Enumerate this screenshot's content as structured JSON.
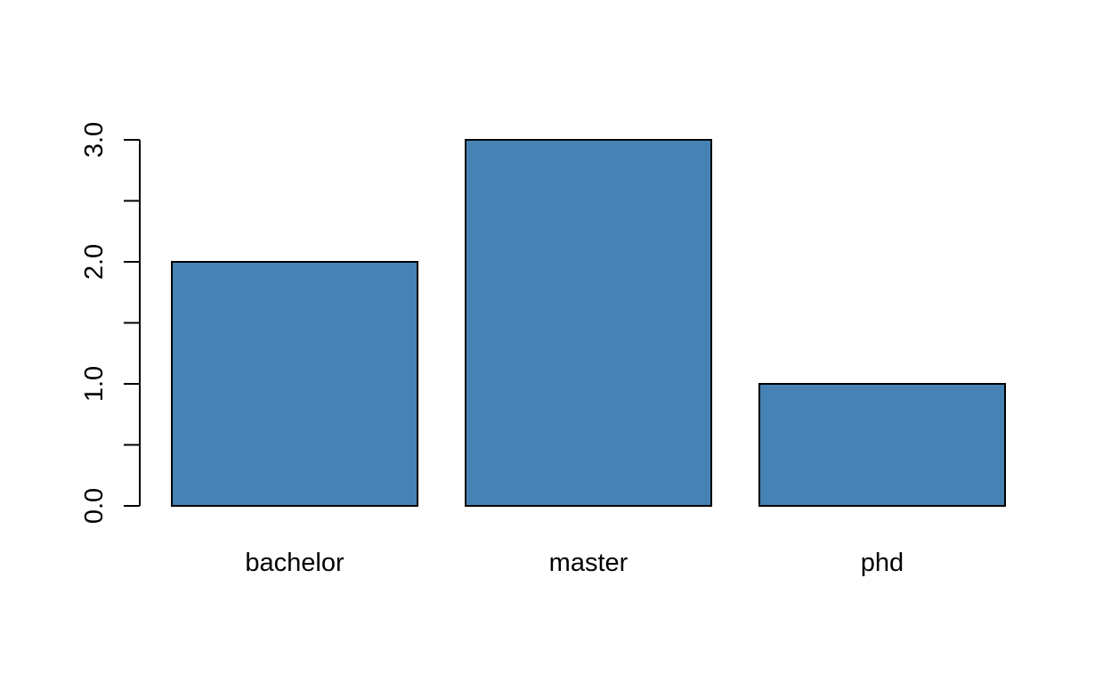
{
  "chart_data": {
    "type": "bar",
    "categories": [
      "bachelor",
      "master",
      "phd"
    ],
    "values": [
      2,
      3,
      1
    ],
    "title": "",
    "xlabel": "",
    "ylabel": "",
    "ylim": [
      0,
      3
    ],
    "y_ticks": [
      0,
      0.5,
      1,
      1.5,
      2,
      2.5,
      3
    ],
    "y_tick_labels": [
      "0.0",
      "",
      "1.0",
      "",
      "2.0",
      "",
      "3.0"
    ],
    "grid": false,
    "legend": "none",
    "bar_color": "#4682B4",
    "bar_edge_color": "#000000"
  }
}
